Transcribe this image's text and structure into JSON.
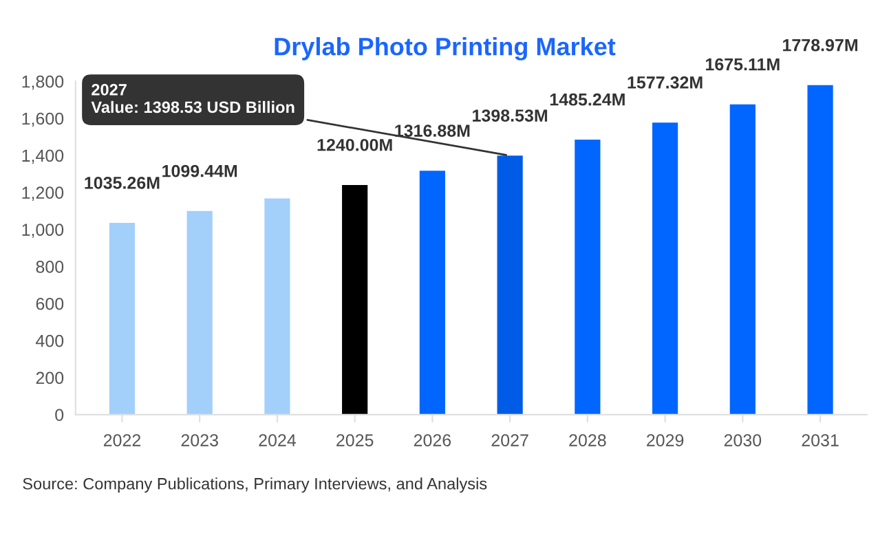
{
  "chart_data": {
    "type": "bar",
    "title": "Drylab Photo Printing Market",
    "categories": [
      "2022",
      "2023",
      "2024",
      "2025",
      "2026",
      "2027",
      "2028",
      "2029",
      "2030",
      "2031"
    ],
    "values": [
      1035.26,
      1099.44,
      1167,
      1240.0,
      1316.88,
      1398.53,
      1485.24,
      1577.32,
      1675.11,
      1778.97
    ],
    "value_labels": [
      "1035.26M",
      "1099.44M",
      null,
      "1240.00M",
      "1316.88M",
      "1398.53M",
      "1485.24M",
      "1577.32M",
      "1675.11M",
      "1778.97M"
    ],
    "colors": [
      "#a3cffb",
      "#a3cffb",
      "#a3cffb",
      "#000000",
      "#0066ff",
      "#005ce6",
      "#0066ff",
      "#0066ff",
      "#0066ff",
      "#0066ff"
    ],
    "ylim": [
      0,
      1800
    ],
    "yticks": [
      0,
      {
        "value": 200,
        "label": "200"
      },
      {
        "value": 400,
        "label": "400"
      },
      {
        "value": 600,
        "label": "600"
      },
      {
        "value": 800,
        "label": "800"
      },
      {
        "value": 1000,
        "label": "1,000"
      },
      {
        "value": 1200,
        "label": "1,200"
      },
      {
        "value": 1400,
        "label": "1,400"
      },
      {
        "value": 1600,
        "label": "1,600"
      },
      {
        "value": 1800,
        "label": "1,800"
      }
    ],
    "grid": false,
    "annotations": [
      {
        "text": "2027\nValue: 1398.53 USD Billion",
        "x": "2027",
        "y": 1398.53
      },
      "Source: Company Publications, Primary Interviews, and Analysis"
    ]
  }
}
